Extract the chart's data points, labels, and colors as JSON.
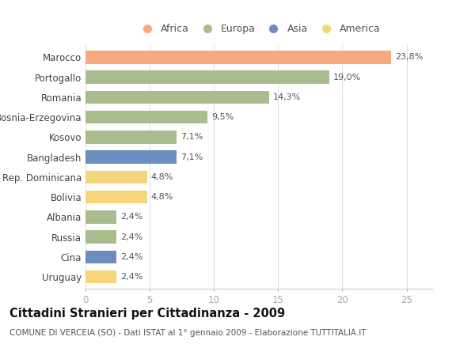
{
  "categories": [
    "Marocco",
    "Portogallo",
    "Romania",
    "Bosnia-Erzegovina",
    "Kosovo",
    "Bangladesh",
    "Rep. Dominicana",
    "Bolivia",
    "Albania",
    "Russia",
    "Cina",
    "Uruguay"
  ],
  "values": [
    23.8,
    19.0,
    14.3,
    9.5,
    7.1,
    7.1,
    4.8,
    4.8,
    2.4,
    2.4,
    2.4,
    2.4
  ],
  "labels": [
    "23,8%",
    "19,0%",
    "14,3%",
    "9,5%",
    "7,1%",
    "7,1%",
    "4,8%",
    "4,8%",
    "2,4%",
    "2,4%",
    "2,4%",
    "2,4%"
  ],
  "colors": [
    "#F5A97C",
    "#A9BC8D",
    "#A9BC8D",
    "#A9BC8D",
    "#A9BC8D",
    "#6B8DBF",
    "#F5D57A",
    "#F5D57A",
    "#A9BC8D",
    "#A9BC8D",
    "#6B8DBF",
    "#F5D57A"
  ],
  "legend": [
    {
      "label": "Africa",
      "color": "#F5A97C"
    },
    {
      "label": "Europa",
      "color": "#A9BC8D"
    },
    {
      "label": "Asia",
      "color": "#6B8DBF"
    },
    {
      "label": "America",
      "color": "#F5D57A"
    }
  ],
  "xlim": [
    0,
    27
  ],
  "xticks": [
    0,
    5,
    10,
    15,
    20,
    25
  ],
  "title": "Cittadini Stranieri per Cittadinanza - 2009",
  "subtitle": "COMUNE DI VERCEIA (SO) - Dati ISTAT al 1° gennaio 2009 - Elaborazione TUTTITALIA.IT",
  "bg_color": "#FFFFFF",
  "bar_height": 0.65,
  "label_fontsize": 8,
  "tick_fontsize": 8.5,
  "title_fontsize": 10.5,
  "subtitle_fontsize": 7.5
}
